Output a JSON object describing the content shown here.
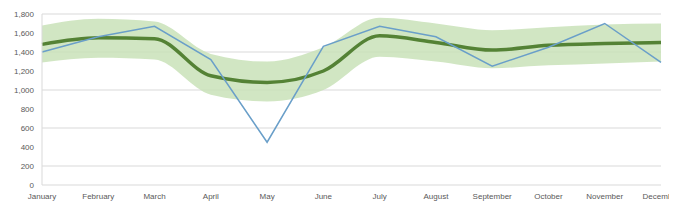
{
  "chart_data": {
    "type": "line",
    "categories": [
      "January",
      "February",
      "March",
      "April",
      "May",
      "June",
      "July",
      "August",
      "September",
      "October",
      "November",
      "December"
    ],
    "series": [
      {
        "type": "area",
        "color": "#c9e2b8",
        "values": [
          [
            1290,
            1680
          ],
          [
            1340,
            1750
          ],
          [
            1320,
            1720
          ],
          [
            950,
            1380
          ],
          [
            880,
            1300
          ],
          [
            1000,
            1450
          ],
          [
            1350,
            1760
          ],
          [
            1300,
            1700
          ],
          [
            1230,
            1630
          ],
          [
            1260,
            1660
          ],
          [
            1280,
            1690
          ],
          [
            1300,
            1700
          ]
        ]
      },
      {
        "type": "line",
        "color": "#548235",
        "line_style": "smooth",
        "values": [
          1480,
          1550,
          1540,
          1150,
          1080,
          1200,
          1570,
          1500,
          1420,
          1470,
          1490,
          1500
        ]
      },
      {
        "type": "line",
        "color": "#6a9fc9",
        "line_style": "straight",
        "values": [
          1400,
          1560,
          1670,
          1320,
          450,
          1460,
          1670,
          1560,
          1250,
          1450,
          1700,
          1290
        ]
      }
    ],
    "ylim": [
      0,
      1800
    ],
    "yticks": [
      0,
      200,
      400,
      600,
      800,
      {
        "value": 1000,
        "label": "1,000"
      },
      {
        "value": 1200,
        "label": "1,200"
      },
      {
        "value": 1400,
        "label": "1,400"
      },
      {
        "value": 1600,
        "label": "1,600"
      },
      {
        "value": 1800,
        "label": "1,800"
      }
    ],
    "grid": true
  }
}
